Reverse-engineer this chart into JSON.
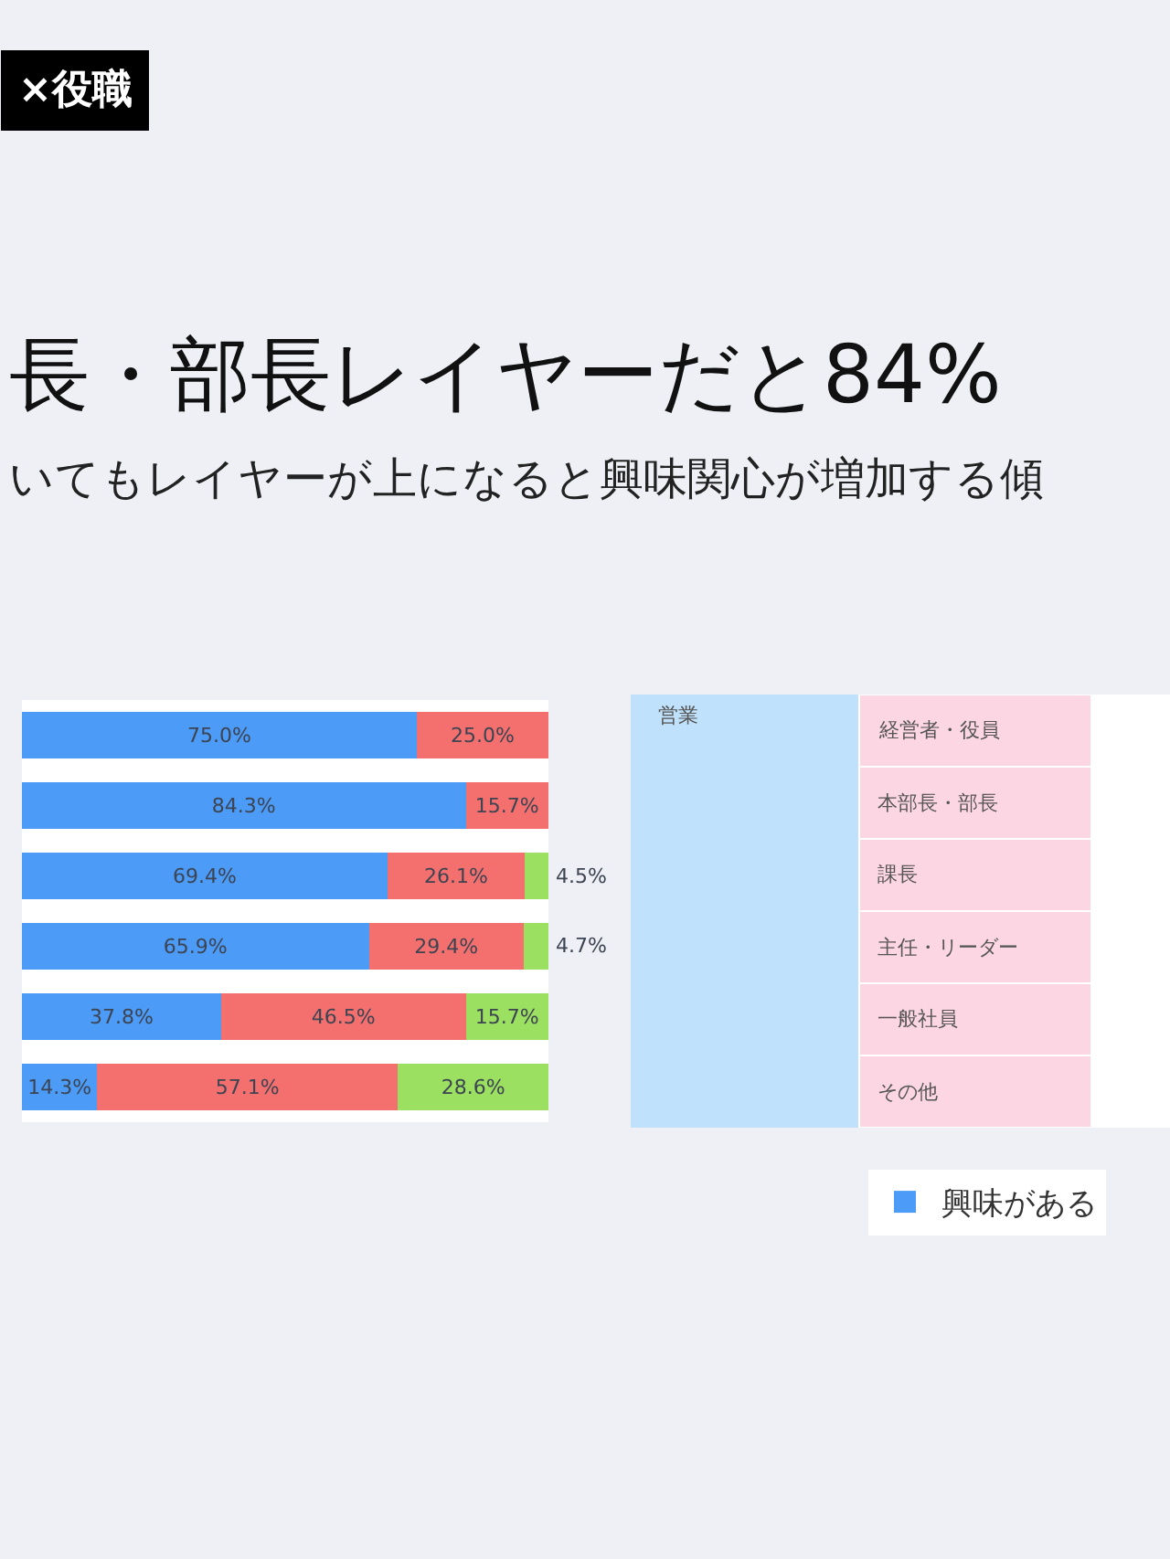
{
  "chart_data": [
    {
      "type": "bar",
      "orientation": "horizontal",
      "stacked": true,
      "title": "長・部長レイヤーだと84%",
      "subtitle": "いてもレイヤーが上になると興味関心が増加する傾",
      "annotations": [
        "×役職"
      ],
      "categories": [
        null,
        null,
        null,
        null,
        null,
        null
      ],
      "xlim": [
        0,
        100
      ],
      "tick_labels": false,
      "legend": "bottom right",
      "series": [
        {
          "name": "興味がある",
          "color": "#4b9bf7",
          "values": [
            75.0,
            84.3,
            69.4,
            65.9,
            37.8,
            14.3
          ],
          "value_labels": [
            "75.0%",
            "84.3%",
            "69.4%",
            "65.9%",
            "37.8%",
            "14.3%"
          ]
        },
        {
          "color": "#f4706f",
          "values": [
            25.0,
            15.7,
            26.1,
            29.4,
            46.5,
            57.1
          ],
          "value_labels": [
            "25.0%",
            "15.7%",
            "26.1%",
            "29.4%",
            "46.5%",
            "57.1%"
          ]
        },
        {
          "color": "#9be060",
          "values": [
            null,
            null,
            4.5,
            4.7,
            15.7,
            28.6
          ],
          "value_labels": [
            null,
            null,
            "4.5%",
            "4.7%",
            "15.7%",
            "28.6%"
          ]
        }
      ]
    },
    {
      "type": "other",
      "annotations": [
        "営業"
      ],
      "y_categories": [
        "経営者・役員",
        "本部長・部長",
        "課長",
        "主任・リーダー",
        "一般社員",
        "その他"
      ],
      "colors": [
        "#bfe1fb",
        "#fdd6e3"
      ]
    }
  ]
}
